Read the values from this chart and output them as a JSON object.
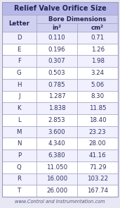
{
  "title": "Relief Valve Orifice Size",
  "sub_headers": [
    "in²",
    "cm²"
  ],
  "rows": [
    [
      "D",
      "0.110",
      "0.71"
    ],
    [
      "E",
      "0.196",
      "1.26"
    ],
    [
      "F",
      "0.307",
      "1.98"
    ],
    [
      "G",
      "0.503",
      "3.24"
    ],
    [
      "H",
      "0.785",
      "5.06"
    ],
    [
      "J",
      "1.287",
      "8.30"
    ],
    [
      "K",
      "1.838",
      "11.85"
    ],
    [
      "L",
      "2.853",
      "18.40"
    ],
    [
      "M",
      "3.600",
      "23.23"
    ],
    [
      "N",
      "4.340",
      "28.00"
    ],
    [
      "P",
      "6.380",
      "41.16"
    ],
    [
      "Q",
      "11.050",
      "71.29"
    ],
    [
      "R",
      "16.000",
      "103.22"
    ],
    [
      "T",
      "26.000",
      "167.74"
    ]
  ],
  "footer": "www.Control and Instrumentation.com",
  "title_bg": "#b8b8e8",
  "header_bg": "#d0d0f0",
  "row_bg_odd": "#f0f0ff",
  "row_bg_even": "#ffffff",
  "border_color": "#9999bb",
  "header_text_color": "#222255",
  "cell_text_color": "#333366",
  "footer_color": "#555577",
  "fig_bg": "#e8e8f5",
  "title_fontsize": 7.0,
  "header_fontsize": 6.2,
  "cell_fontsize": 6.2,
  "footer_fontsize": 4.8
}
